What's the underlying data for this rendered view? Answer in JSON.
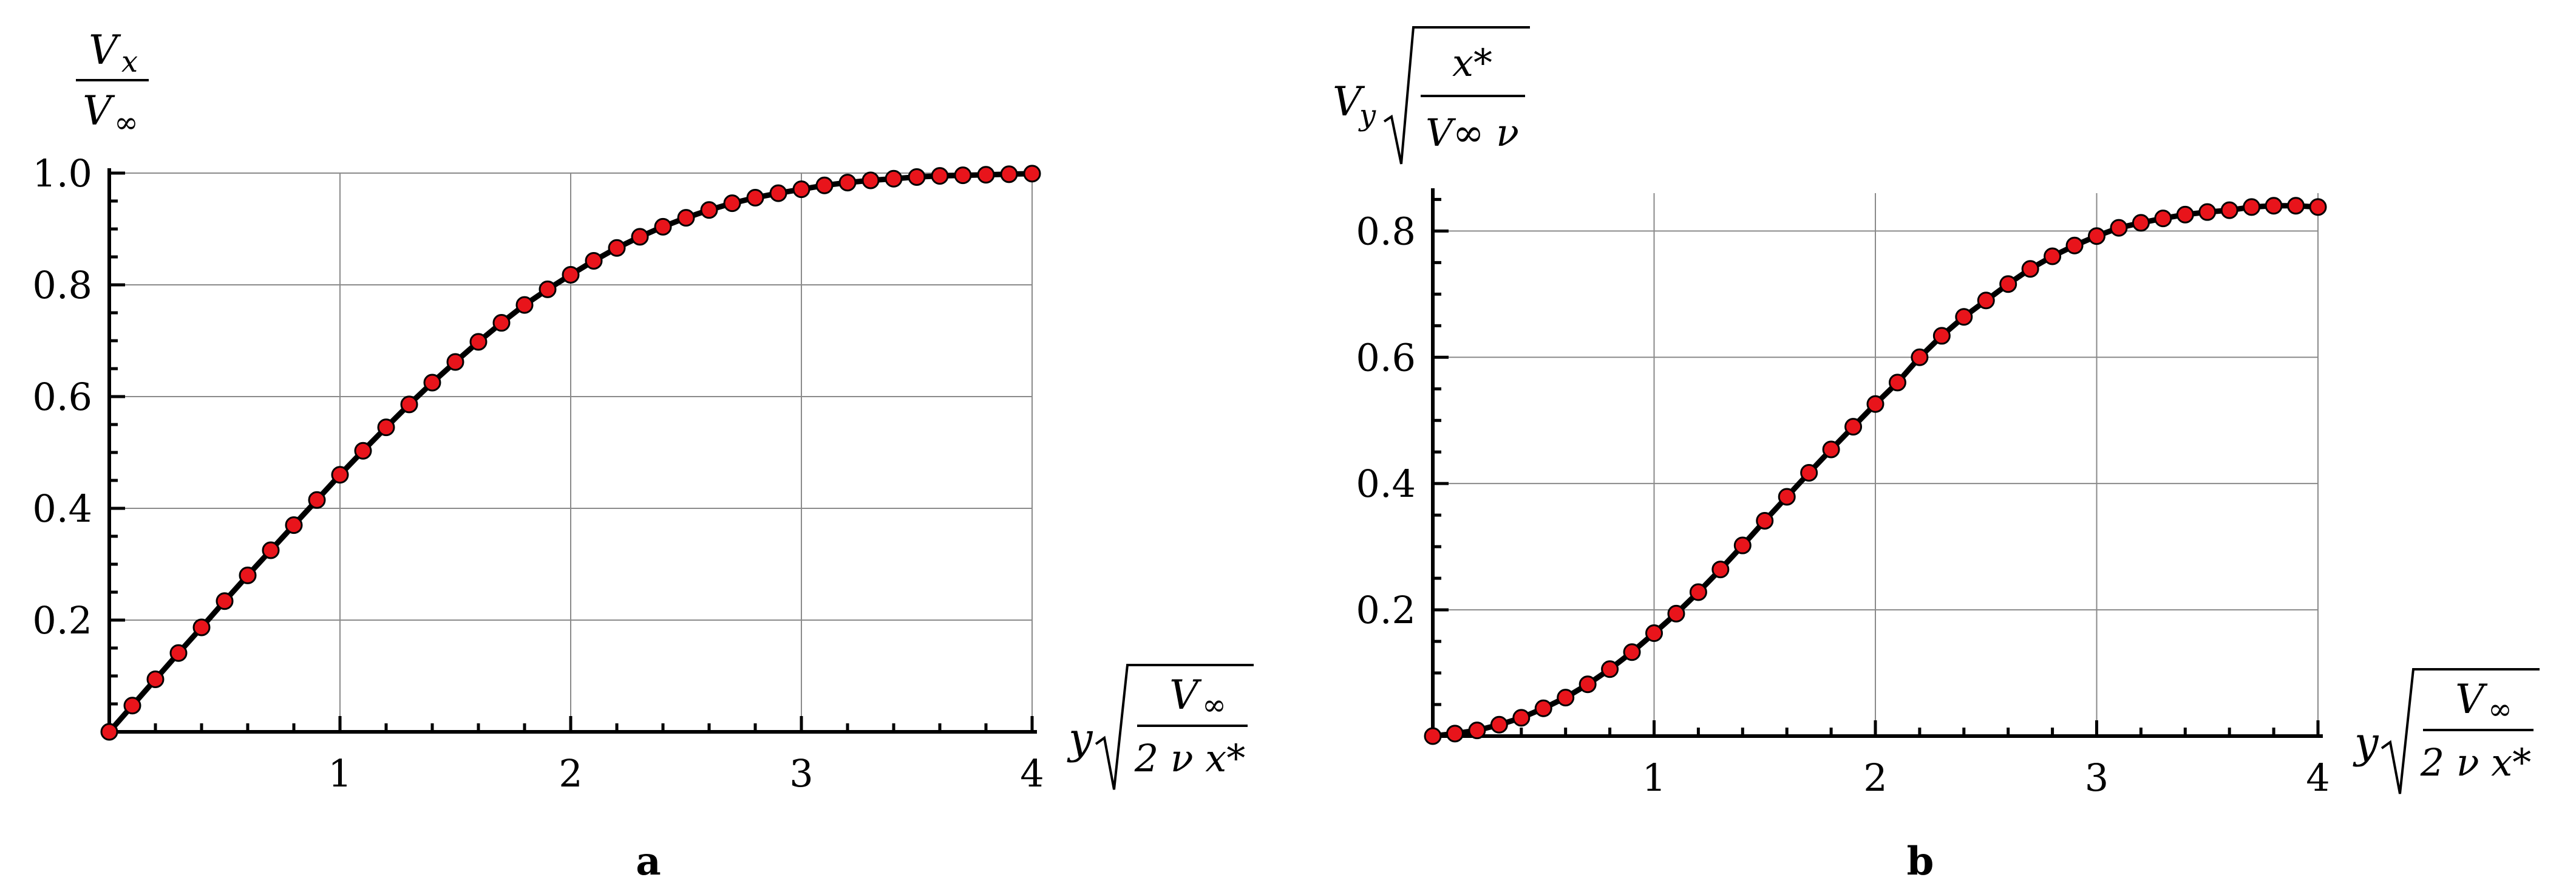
{
  "chart_data": [
    {
      "type": "line",
      "panel_label": "a",
      "x_range": [
        0,
        4
      ],
      "y_range": [
        0,
        1.0
      ],
      "x_ticks": [
        "1",
        "2",
        "3",
        "4"
      ],
      "y_ticks": [
        "0.2",
        "0.4",
        "0.6",
        "0.8",
        "1.0"
      ],
      "y_label": {
        "num_base": "V",
        "num_sub": "x",
        "den_base": "V",
        "den_sub": "∞"
      },
      "x_label": {
        "pre": "y",
        "num_base": "V",
        "num_sub": "∞",
        "den": "2 ν x*"
      },
      "grid": true,
      "line_color": "#000000",
      "marker_color": "#e8141b",
      "series": [
        {
          "x": [
            0.0,
            0.1,
            0.2,
            0.3,
            0.4,
            0.5,
            0.6,
            0.7,
            0.8,
            0.9,
            1.0,
            1.1,
            1.2,
            1.3,
            1.4,
            1.5,
            1.6,
            1.7,
            1.8,
            1.9,
            2.0,
            2.1,
            2.2,
            2.3,
            2.4,
            2.5,
            2.6,
            2.7,
            2.8,
            2.9,
            3.0,
            3.1,
            3.2,
            3.3,
            3.4,
            3.5,
            3.6,
            3.7,
            3.8,
            3.9,
            4.0
          ],
          "y": [
            0.0,
            0.047,
            0.094,
            0.141,
            0.187,
            0.234,
            0.28,
            0.325,
            0.37,
            0.415,
            0.46,
            0.503,
            0.545,
            0.586,
            0.625,
            0.662,
            0.698,
            0.732,
            0.764,
            0.792,
            0.818,
            0.843,
            0.866,
            0.886,
            0.904,
            0.92,
            0.934,
            0.946,
            0.956,
            0.964,
            0.971,
            0.978,
            0.983,
            0.987,
            0.99,
            0.993,
            0.995,
            0.996,
            0.997,
            0.998,
            0.999
          ]
        }
      ]
    },
    {
      "type": "line",
      "panel_label": "b",
      "x_range": [
        0,
        4
      ],
      "y_range": [
        0,
        0.86
      ],
      "x_ticks": [
        "1",
        "2",
        "3",
        "4"
      ],
      "y_ticks": [
        "0.2",
        "0.4",
        "0.6",
        "0.8"
      ],
      "y_label": {
        "pre_base": "V",
        "pre_sub": "y",
        "num": "x*",
        "den": "V∞ ν"
      },
      "x_label": {
        "pre": "y",
        "num_base": "V",
        "num_sub": "∞",
        "den": "2 ν x*"
      },
      "grid": true,
      "line_color": "#000000",
      "marker_color": "#e8141b",
      "series": [
        {
          "x": [
            0.0,
            0.1,
            0.2,
            0.3,
            0.4,
            0.5,
            0.6,
            0.7,
            0.8,
            0.9,
            1.0,
            1.1,
            1.2,
            1.3,
            1.4,
            1.5,
            1.6,
            1.7,
            1.8,
            1.9,
            2.0,
            2.1,
            2.2,
            2.3,
            2.4,
            2.5,
            2.6,
            2.7,
            2.8,
            2.9,
            3.0,
            3.1,
            3.2,
            3.3,
            3.4,
            3.5,
            3.6,
            3.7,
            3.8,
            3.9,
            4.0
          ],
          "y": [
            0.0,
            0.004,
            0.009,
            0.018,
            0.029,
            0.044,
            0.061,
            0.082,
            0.106,
            0.133,
            0.163,
            0.194,
            0.228,
            0.264,
            0.302,
            0.341,
            0.379,
            0.417,
            0.454,
            0.49,
            0.526,
            0.56,
            0.6,
            0.634,
            0.664,
            0.69,
            0.716,
            0.74,
            0.76,
            0.777,
            0.792,
            0.805,
            0.813,
            0.82,
            0.826,
            0.83,
            0.833,
            0.838,
            0.84,
            0.84,
            0.838
          ]
        }
      ]
    }
  ]
}
